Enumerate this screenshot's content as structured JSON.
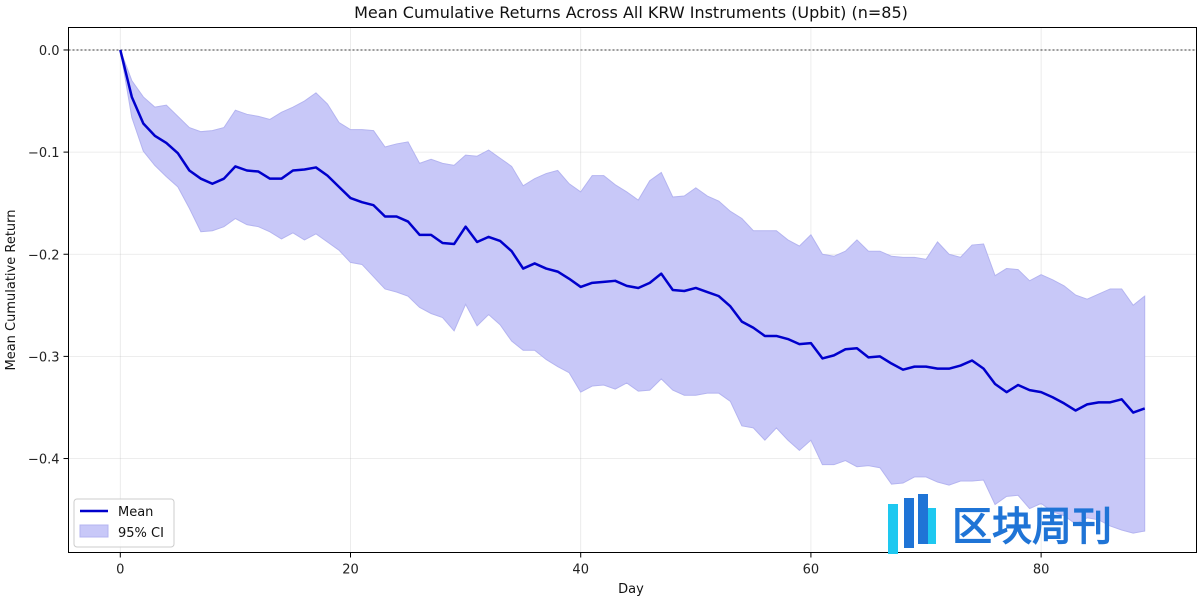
{
  "chart_data": {
    "type": "line",
    "title": "Mean Cumulative Returns Across All KRW Instruments (Upbit) (n=85)",
    "xlabel": "Day",
    "ylabel": "Mean Cumulative Return",
    "xlim": [
      -4.5,
      93.5
    ],
    "ylim": [
      -0.492,
      0.022
    ],
    "xticks": [
      0,
      20,
      40,
      60,
      80
    ],
    "xtick_labels": [
      "0",
      "20",
      "40",
      "60",
      "80"
    ],
    "yticks": [
      0.0,
      -0.1,
      -0.2,
      -0.3,
      -0.4
    ],
    "ytick_labels": [
      "0.0",
      "−0.1",
      "−0.2",
      "−0.3",
      "−0.4"
    ],
    "grid": true,
    "reference_line": {
      "y": 0.0,
      "style": "dashed",
      "color": "#000000"
    },
    "legend": {
      "position": "bottom-left",
      "entries": [
        "Mean",
        "95% CI"
      ]
    },
    "series": [
      {
        "name": "Mean",
        "color": "#0000cc",
        "x": [
          0,
          1,
          2,
          3,
          4,
          5,
          6,
          7,
          8,
          9,
          10,
          11,
          12,
          13,
          14,
          15,
          16,
          17,
          18,
          19,
          20,
          21,
          22,
          23,
          24,
          25,
          26,
          27,
          28,
          29,
          30,
          31,
          32,
          33,
          34,
          35,
          36,
          37,
          38,
          39,
          40,
          41,
          42,
          43,
          44,
          45,
          46,
          47,
          48,
          49,
          50,
          51,
          52,
          53,
          54,
          55,
          56,
          57,
          58,
          59,
          60,
          61,
          62,
          63,
          64,
          65,
          66,
          67,
          68,
          69,
          70,
          71,
          72,
          73,
          74,
          75,
          76,
          77,
          78,
          79,
          80,
          81,
          82,
          83,
          84,
          85,
          86,
          87,
          88,
          89
        ],
        "values": [
          0,
          -0.046,
          -0.072,
          -0.084,
          -0.091,
          -0.101,
          -0.118,
          -0.126,
          -0.131,
          -0.126,
          -0.114,
          -0.118,
          -0.119,
          -0.126,
          -0.126,
          -0.118,
          -0.117,
          -0.115,
          -0.123,
          -0.134,
          -0.145,
          -0.149,
          -0.152,
          -0.163,
          -0.163,
          -0.168,
          -0.181,
          -0.181,
          -0.189,
          -0.19,
          -0.173,
          -0.188,
          -0.183,
          -0.187,
          -0.197,
          -0.214,
          -0.209,
          -0.214,
          -0.217,
          -0.224,
          -0.232,
          -0.228,
          -0.227,
          -0.226,
          -0.231,
          -0.233,
          -0.228,
          -0.219,
          -0.235,
          -0.236,
          -0.233,
          -0.237,
          -0.241,
          -0.251,
          -0.266,
          -0.272,
          -0.28,
          -0.28,
          -0.283,
          -0.288,
          -0.287,
          -0.302,
          -0.299,
          -0.293,
          -0.292,
          -0.301,
          -0.3,
          -0.307,
          -0.313,
          -0.31,
          -0.31,
          -0.312,
          -0.312,
          -0.309,
          -0.304,
          -0.312,
          -0.327,
          -0.335,
          -0.328,
          -0.333,
          -0.335,
          -0.34,
          -0.346,
          -0.353,
          -0.347,
          -0.345,
          -0.345,
          -0.342,
          -0.355,
          -0.351
        ]
      },
      {
        "name": "95% CI",
        "color": "#c8c8f8",
        "x": [
          0,
          1,
          2,
          3,
          4,
          5,
          6,
          7,
          8,
          9,
          10,
          11,
          12,
          13,
          14,
          15,
          16,
          17,
          18,
          19,
          20,
          21,
          22,
          23,
          24,
          25,
          26,
          27,
          28,
          29,
          30,
          31,
          32,
          33,
          34,
          35,
          36,
          37,
          38,
          39,
          40,
          41,
          42,
          43,
          44,
          45,
          46,
          47,
          48,
          49,
          50,
          51,
          52,
          53,
          54,
          55,
          56,
          57,
          58,
          59,
          60,
          61,
          62,
          63,
          64,
          65,
          66,
          67,
          68,
          69,
          70,
          71,
          72,
          73,
          74,
          75,
          76,
          77,
          78,
          79,
          80,
          81,
          82,
          83,
          84,
          85,
          86,
          87,
          88,
          89
        ],
        "upper": [
          0,
          -0.03,
          -0.046,
          -0.056,
          -0.054,
          -0.065,
          -0.076,
          -0.08,
          -0.079,
          -0.076,
          -0.059,
          -0.063,
          -0.065,
          -0.068,
          -0.061,
          -0.056,
          -0.05,
          -0.042,
          -0.053,
          -0.071,
          -0.078,
          -0.078,
          -0.079,
          -0.095,
          -0.092,
          -0.09,
          -0.111,
          -0.107,
          -0.111,
          -0.113,
          -0.103,
          -0.104,
          -0.098,
          -0.106,
          -0.114,
          -0.133,
          -0.126,
          -0.121,
          -0.118,
          -0.131,
          -0.139,
          -0.123,
          -0.123,
          -0.132,
          -0.139,
          -0.147,
          -0.128,
          -0.12,
          -0.144,
          -0.143,
          -0.135,
          -0.143,
          -0.148,
          -0.158,
          -0.165,
          -0.177,
          -0.177,
          -0.177,
          -0.186,
          -0.192,
          -0.181,
          -0.2,
          -0.202,
          -0.197,
          -0.186,
          -0.197,
          -0.197,
          -0.202,
          -0.203,
          -0.203,
          -0.205,
          -0.188,
          -0.2,
          -0.203,
          -0.191,
          -0.19,
          -0.221,
          -0.214,
          -0.215,
          -0.226,
          -0.22,
          -0.225,
          -0.231,
          -0.24,
          -0.244,
          -0.239,
          -0.234,
          -0.234,
          -0.25,
          -0.241
        ],
        "lower": [
          0,
          -0.066,
          -0.099,
          -0.113,
          -0.124,
          -0.134,
          -0.155,
          -0.178,
          -0.177,
          -0.173,
          -0.165,
          -0.171,
          -0.173,
          -0.178,
          -0.185,
          -0.179,
          -0.186,
          -0.18,
          -0.188,
          -0.196,
          -0.208,
          -0.21,
          -0.222,
          -0.234,
          -0.237,
          -0.241,
          -0.252,
          -0.258,
          -0.262,
          -0.275,
          -0.249,
          -0.27,
          -0.259,
          -0.269,
          -0.285,
          -0.294,
          -0.294,
          -0.303,
          -0.31,
          -0.316,
          -0.335,
          -0.329,
          -0.328,
          -0.332,
          -0.326,
          -0.334,
          -0.333,
          -0.322,
          -0.333,
          -0.338,
          -0.338,
          -0.336,
          -0.336,
          -0.344,
          -0.368,
          -0.37,
          -0.382,
          -0.37,
          -0.382,
          -0.392,
          -0.382,
          -0.406,
          -0.406,
          -0.402,
          -0.408,
          -0.407,
          -0.409,
          -0.425,
          -0.424,
          -0.418,
          -0.418,
          -0.423,
          -0.426,
          -0.422,
          -0.422,
          -0.421,
          -0.445,
          -0.437,
          -0.436,
          -0.449,
          -0.444,
          -0.452,
          -0.456,
          -0.464,
          -0.458,
          -0.46,
          -0.466,
          -0.47,
          -0.473,
          -0.471
        ]
      }
    ]
  },
  "watermark": {
    "text": "区块周刊",
    "colors": {
      "bar_cyan": "#1ec8f0",
      "bar_blue": "#1f74d6"
    }
  }
}
